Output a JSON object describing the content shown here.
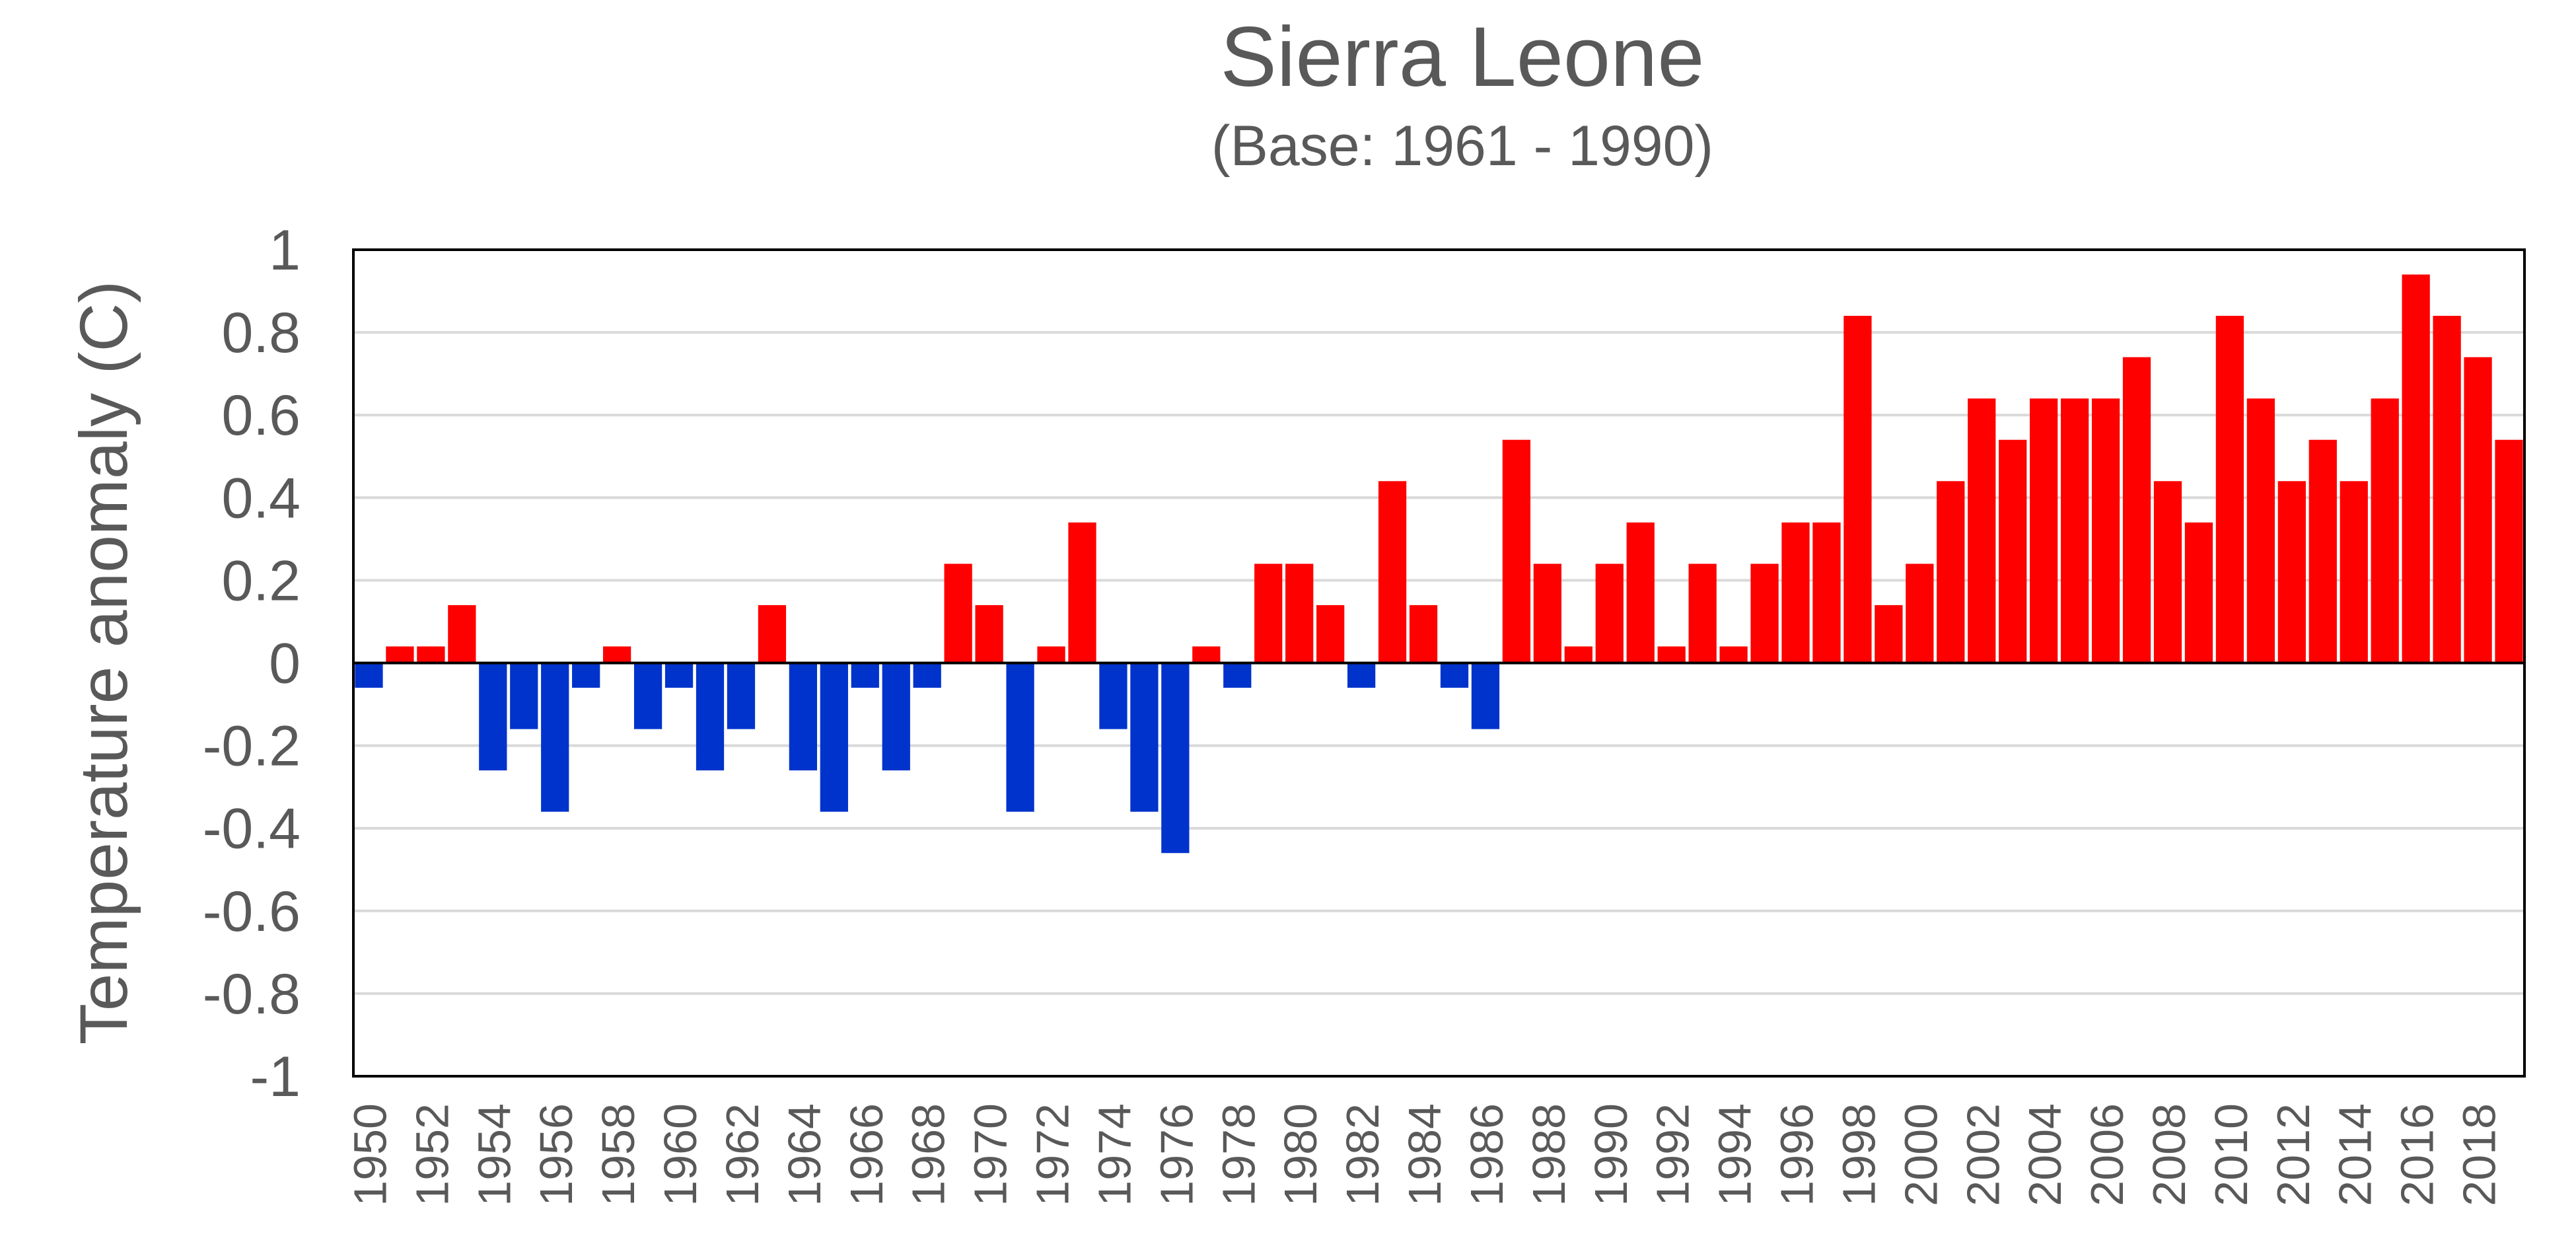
{
  "chart_data": {
    "type": "bar",
    "title": "Sierra Leone",
    "subtitle": "(Base: 1961 - 1990)",
    "xlabel": "",
    "ylabel": "Temperature anomaly (C)",
    "ylim": [
      -1,
      1
    ],
    "yticks": [
      1,
      0.8,
      0.6,
      0.4,
      0.2,
      0,
      -0.2,
      -0.4,
      -0.6,
      -0.8,
      -1
    ],
    "ytick_labels": [
      "1",
      "0.8",
      "0.6",
      "0.4",
      "0.2",
      "0",
      "-0.2",
      "-0.4",
      "-0.6",
      "-0.8",
      "-1"
    ],
    "xtick_labels": [
      "1950",
      "1952",
      "1954",
      "1956",
      "1958",
      "1960",
      "1962",
      "1964",
      "1966",
      "1968",
      "1970",
      "1972",
      "1974",
      "1976",
      "1978",
      "1980",
      "1982",
      "1984",
      "1986",
      "1988",
      "1990",
      "1992",
      "1994",
      "1996",
      "1998",
      "2000",
      "2002",
      "2004",
      "2006",
      "2008",
      "2010",
      "2012",
      "2014",
      "2016",
      "2018"
    ],
    "grid": true,
    "positive_color": "#ff0000",
    "negative_color": "#0033cc",
    "categories": [
      "1950",
      "1951",
      "1952",
      "1953",
      "1954",
      "1955",
      "1956",
      "1957",
      "1958",
      "1959",
      "1960",
      "1961",
      "1962",
      "1963",
      "1964",
      "1965",
      "1966",
      "1967",
      "1968",
      "1969",
      "1970",
      "1971",
      "1972",
      "1973",
      "1974",
      "1975",
      "1976",
      "1977",
      "1978",
      "1979",
      "1980",
      "1981",
      "1982",
      "1983",
      "1984",
      "1985",
      "1986",
      "1987",
      "1988",
      "1989",
      "1990",
      "1991",
      "1992",
      "1993",
      "1994",
      "1995",
      "1996",
      "1997",
      "1998",
      "1999",
      "2000",
      "2001",
      "2002",
      "2003",
      "2004",
      "2005",
      "2006",
      "2007",
      "2008",
      "2009",
      "2010",
      "2011",
      "2012",
      "2013",
      "2014",
      "2015",
      "2016",
      "2017",
      "2018",
      "2019"
    ],
    "values": [
      -0.06,
      0.04,
      0.04,
      0.14,
      -0.26,
      -0.16,
      -0.36,
      -0.06,
      0.04,
      -0.16,
      -0.06,
      -0.26,
      -0.16,
      0.14,
      -0.26,
      -0.36,
      -0.06,
      -0.26,
      -0.06,
      0.24,
      0.14,
      -0.36,
      0.04,
      0.34,
      -0.16,
      -0.36,
      -0.46,
      0.04,
      -0.06,
      0.24,
      0.24,
      0.14,
      -0.06,
      0.44,
      0.14,
      -0.06,
      -0.16,
      0.54,
      0.24,
      0.04,
      0.24,
      0.34,
      0.04,
      0.24,
      0.04,
      0.24,
      0.34,
      0.34,
      0.84,
      0.14,
      0.24,
      0.44,
      0.64,
      0.54,
      0.64,
      0.64,
      0.64,
      0.74,
      0.44,
      0.34,
      0.84,
      0.64,
      0.44,
      0.54,
      0.44,
      0.64,
      0.94,
      0.84,
      0.74,
      0.54
    ]
  }
}
